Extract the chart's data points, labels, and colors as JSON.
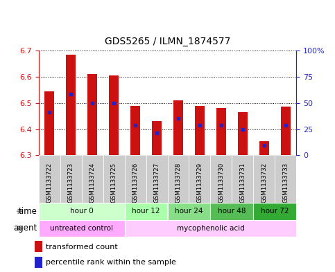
{
  "title": "GDS5265 / ILMN_1874577",
  "samples": [
    "GSM1133722",
    "GSM1133723",
    "GSM1133724",
    "GSM1133725",
    "GSM1133726",
    "GSM1133727",
    "GSM1133728",
    "GSM1133729",
    "GSM1133730",
    "GSM1133731",
    "GSM1133732",
    "GSM1133733"
  ],
  "bar_tops": [
    6.545,
    6.685,
    6.61,
    6.605,
    6.49,
    6.43,
    6.51,
    6.49,
    6.48,
    6.465,
    6.355,
    6.485
  ],
  "bar_base": 6.3,
  "blue_dot_vals": [
    6.465,
    6.535,
    6.5,
    6.5,
    6.415,
    6.385,
    6.44,
    6.415,
    6.415,
    6.4,
    6.338,
    6.415
  ],
  "ylim": [
    6.3,
    6.7
  ],
  "yticks_left": [
    6.3,
    6.4,
    6.5,
    6.6,
    6.7
  ],
  "yticks_right": [
    0,
    25,
    50,
    75,
    100
  ],
  "right_ylim": [
    0,
    100
  ],
  "bar_color": "#cc1111",
  "dot_color": "#2222cc",
  "grid_color": "#000000",
  "axis_color_left": "#cc1111",
  "axis_color_right": "#2222cc",
  "time_groups": [
    {
      "label": "hour 0",
      "start": 0,
      "end": 4,
      "color": "#ccffcc"
    },
    {
      "label": "hour 12",
      "start": 4,
      "end": 6,
      "color": "#aaffaa"
    },
    {
      "label": "hour 24",
      "start": 6,
      "end": 8,
      "color": "#88dd88"
    },
    {
      "label": "hour 48",
      "start": 8,
      "end": 10,
      "color": "#55bb55"
    },
    {
      "label": "hour 72",
      "start": 10,
      "end": 12,
      "color": "#33aa33"
    }
  ],
  "agent_groups": [
    {
      "label": "untreated control",
      "start": 0,
      "end": 4,
      "color": "#ffaaff"
    },
    {
      "label": "mycophenolic acid",
      "start": 4,
      "end": 12,
      "color": "#ffccff"
    }
  ],
  "legend_bar_label": "transformed count",
  "legend_dot_label": "percentile rank within the sample",
  "bg_color": "#ffffff",
  "xticklabel_bg": "#cccccc"
}
